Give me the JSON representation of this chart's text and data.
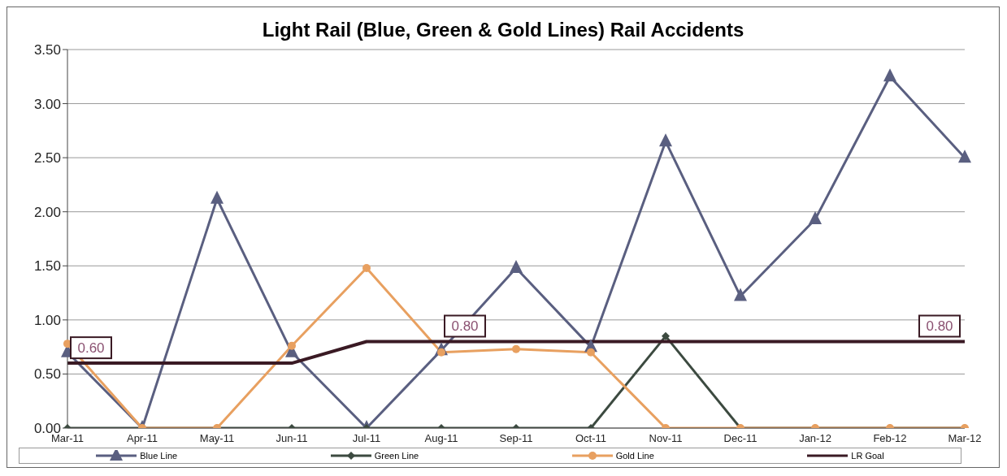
{
  "chart_data": {
    "type": "line",
    "title": "Light Rail (Blue, Green & Gold Lines) Rail Accidents",
    "categories": [
      "Mar-11",
      "Apr-11",
      "May-11",
      "Jun-11",
      "Jul-11",
      "Aug-11",
      "Sep-11",
      "Oct-11",
      "Nov-11",
      "Dec-11",
      "Jan-12",
      "Feb-12",
      "Mar-12"
    ],
    "series": [
      {
        "name": "Blue Line",
        "color": "#5a5f80",
        "marker": "triangle",
        "values": [
          0.7,
          0,
          2.12,
          0.7,
          0,
          0.72,
          1.48,
          0.75,
          2.65,
          1.22,
          1.93,
          3.25,
          2.5
        ]
      },
      {
        "name": "Green Line",
        "color": "#3c4a40",
        "marker": "diamond",
        "values": [
          0,
          0,
          0,
          0,
          0,
          0,
          0,
          0,
          0.85,
          0,
          0,
          0,
          0
        ]
      },
      {
        "name": "Gold Line",
        "color": "#e8a060",
        "marker": "circle",
        "values": [
          0.78,
          0,
          0,
          0.76,
          1.48,
          0.7,
          0.73,
          0.7,
          0,
          0,
          0,
          0,
          0
        ]
      },
      {
        "name": "LR Goal",
        "color": "#3a1a24",
        "marker": "none",
        "values": [
          0.6,
          0.6,
          0.6,
          0.6,
          0.8,
          0.8,
          0.8,
          0.8,
          0.8,
          0.8,
          0.8,
          0.8,
          0.8
        ],
        "value_labels": [
          "0.60",
          null,
          null,
          null,
          null,
          "0.80",
          null,
          null,
          null,
          null,
          null,
          null,
          "0.80"
        ]
      }
    ],
    "ylim": [
      0,
      3.5
    ],
    "yticks": [
      {
        "value": 0,
        "label": "0.00"
      },
      {
        "value": 0.5,
        "label": "0.50"
      },
      {
        "value": 1,
        "label": "1.00"
      },
      {
        "value": 1.5,
        "label": "1.50"
      },
      {
        "value": 2,
        "label": "2.00"
      },
      {
        "value": 2.5,
        "label": "2.50"
      },
      {
        "value": 3,
        "label": "3.00"
      },
      {
        "value": 3.5,
        "label": "3.50"
      }
    ],
    "grid": "y",
    "legend": "bottom"
  }
}
